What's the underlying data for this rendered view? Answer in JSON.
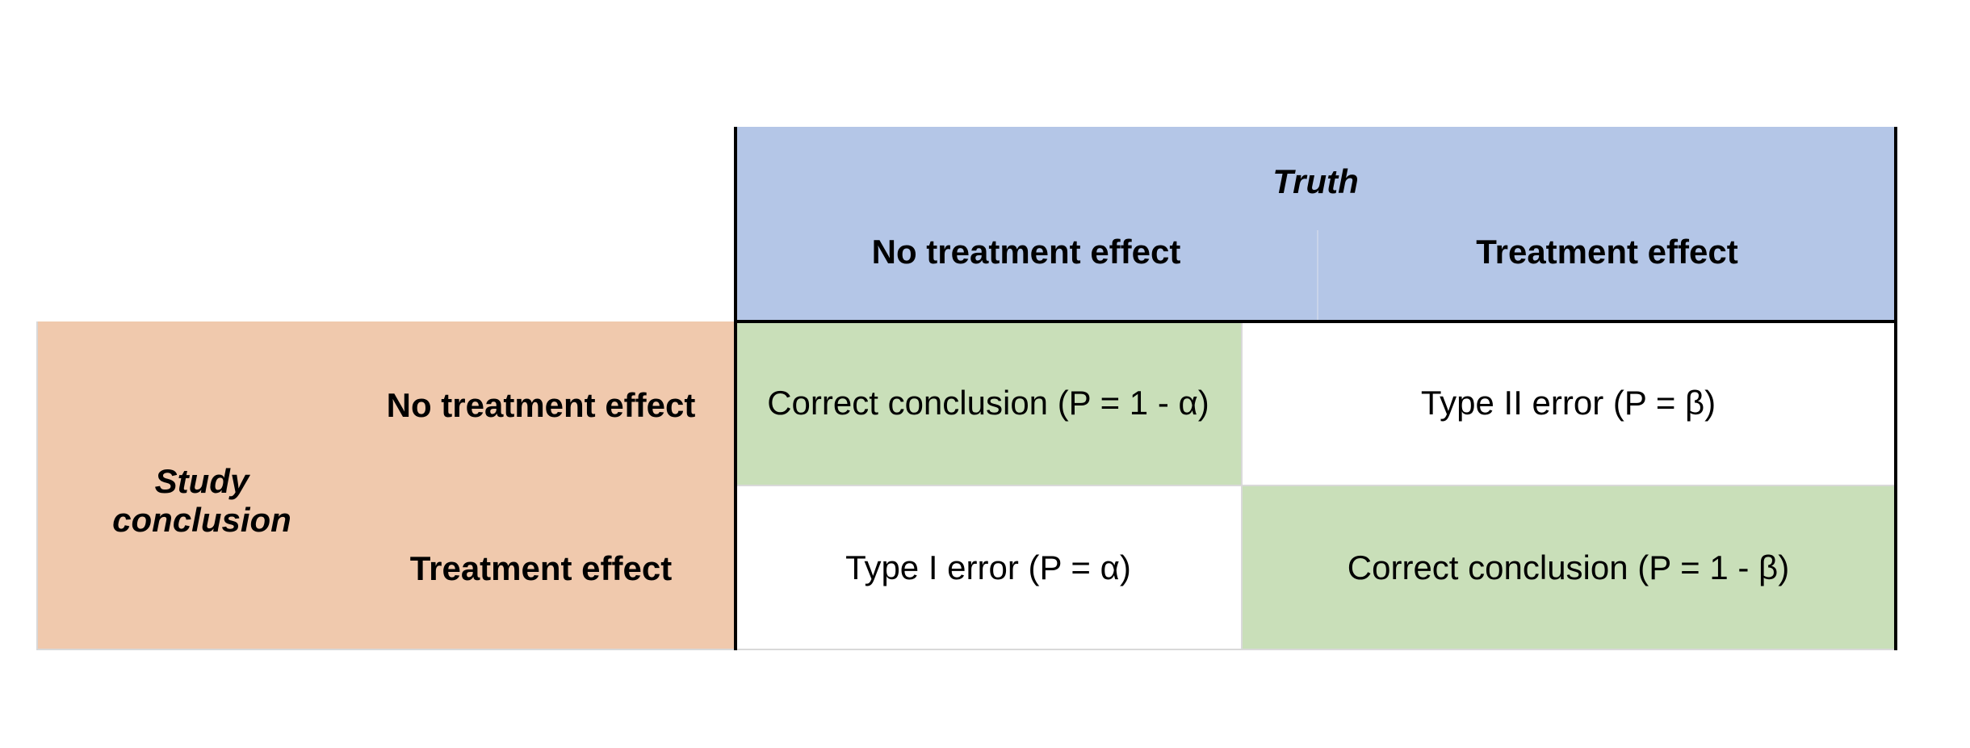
{
  "header": {
    "truth_label": "Truth",
    "columns": [
      "No treatment effect",
      "Treatment effect"
    ]
  },
  "rows_header": {
    "study_label": "Study conclusion",
    "rows": [
      "No treatment effect",
      "Treatment effect"
    ]
  },
  "cells": [
    [
      "Correct conclusion (P = 1 - α)",
      "Type II error (P = β)"
    ],
    [
      "Type I error (P = α)",
      "Correct conclusion (P = 1 - β)"
    ]
  ],
  "colors": {
    "header_bg": "#b4c6e7",
    "row_header_bg": "#f0c9ad",
    "correct_bg": "#c9dfb9",
    "error_bg": "#ffffff"
  }
}
